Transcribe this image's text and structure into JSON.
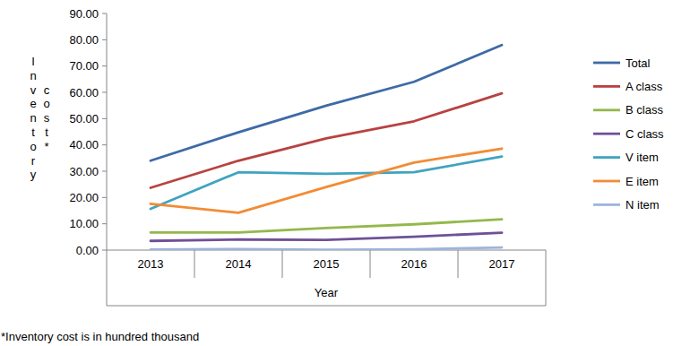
{
  "chart_data": {
    "type": "line",
    "y_label": "Inventory cost*",
    "x_label": "Year",
    "note": "*Inventory cost is in hundred thousand",
    "categories": [
      "2013",
      "2014",
      "2015",
      "2016",
      "2017"
    ],
    "series": [
      {
        "name": "Total",
        "color": "#3e6aa6",
        "values": [
          34.0,
          44.8,
          54.9,
          64.0,
          78.0
        ]
      },
      {
        "name": "A class",
        "color": "#b84240",
        "values": [
          23.7,
          34.0,
          42.5,
          49.0,
          59.6
        ]
      },
      {
        "name": "B class",
        "color": "#94b84c",
        "values": [
          6.7,
          6.7,
          8.4,
          9.8,
          11.7
        ]
      },
      {
        "name": "C class",
        "color": "#6e5196",
        "values": [
          3.5,
          4.0,
          3.9,
          5.1,
          6.6
        ]
      },
      {
        "name": "V item",
        "color": "#3fa4bf",
        "values": [
          15.7,
          29.6,
          29.0,
          29.6,
          35.6
        ]
      },
      {
        "name": "E item",
        "color": "#f28c35",
        "values": [
          17.6,
          14.2,
          24.0,
          33.3,
          38.6
        ]
      },
      {
        "name": "N item",
        "color": "#9db4dd",
        "values": [
          0.2,
          0.4,
          0.1,
          0.3,
          1.0
        ]
      }
    ],
    "ylim": [
      0,
      90
    ],
    "yticks": [
      {
        "value": 0,
        "label": "0.00"
      },
      {
        "value": 10,
        "label": "10.00"
      },
      {
        "value": 20,
        "label": "20.00"
      },
      {
        "value": 30,
        "label": "30.00"
      },
      {
        "value": 40,
        "label": "40.00"
      },
      {
        "value": 50,
        "label": "50.00"
      },
      {
        "value": 60,
        "label": "60.00"
      },
      {
        "value": 70,
        "label": "70.00"
      },
      {
        "value": 80,
        "label": "80.00"
      },
      {
        "value": 90,
        "label": "90.00"
      }
    ],
    "grid": false,
    "legend": "right"
  }
}
